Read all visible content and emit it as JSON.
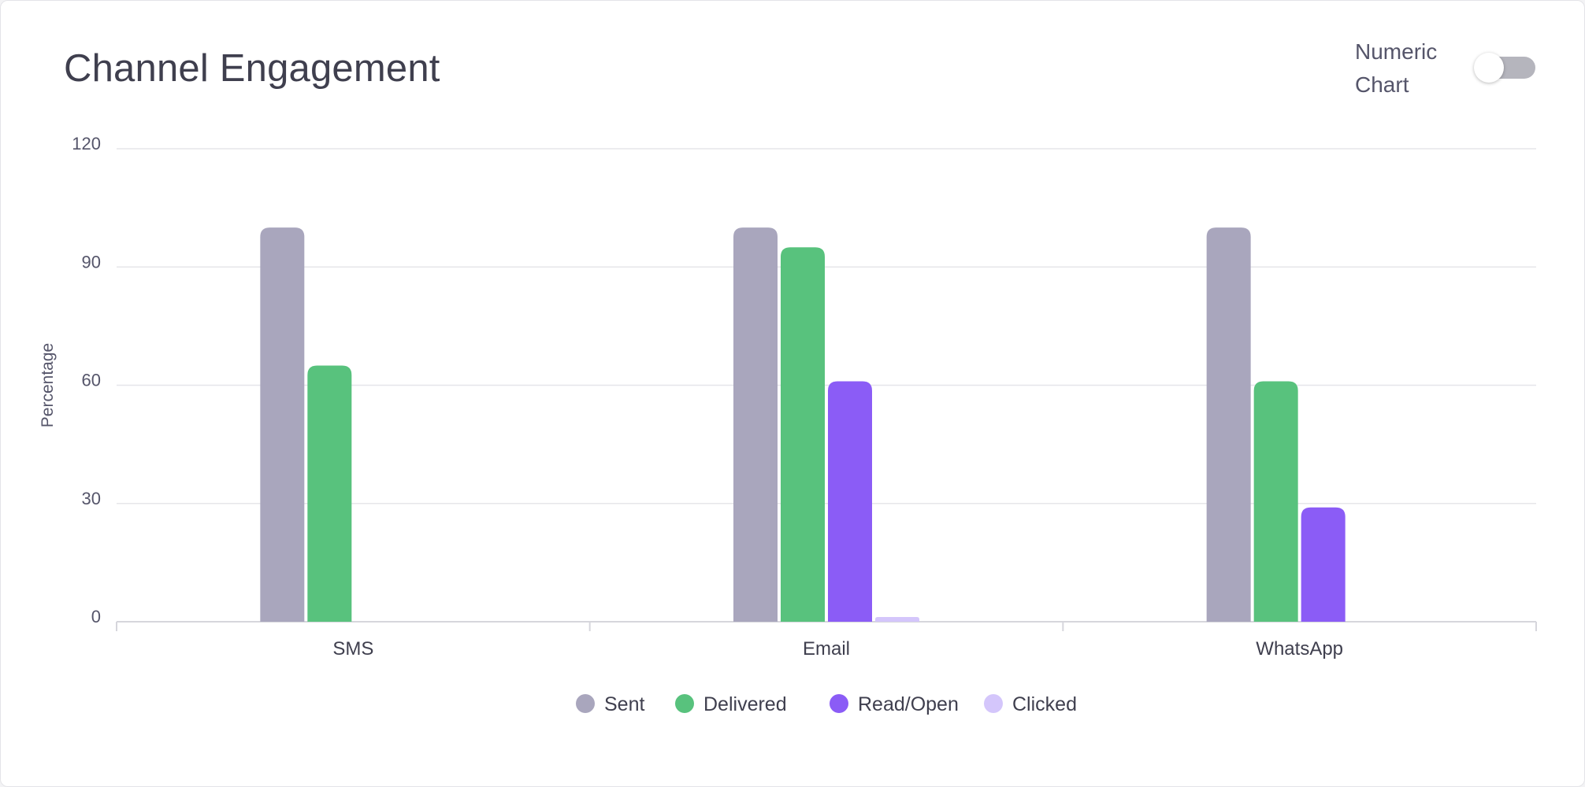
{
  "header": {
    "title": "Channel Engagement",
    "toggle_label_line1": "Numeric",
    "toggle_label_line2": "Chart",
    "toggle_on": false
  },
  "chart_data": {
    "type": "bar",
    "title": "Channel Engagement",
    "xlabel": "",
    "ylabel": "Percentage",
    "ylim": [
      0,
      120
    ],
    "yticks": [
      0,
      30,
      60,
      90,
      120
    ],
    "grid": true,
    "legend_position": "bottom-center",
    "categories": [
      "SMS",
      "Email",
      "WhatsApp"
    ],
    "series": [
      {
        "name": "Sent",
        "color": "#a9a6bd",
        "values": [
          100,
          100,
          100
        ]
      },
      {
        "name": "Delivered",
        "color": "#58c27d",
        "values": [
          65,
          95,
          61
        ]
      },
      {
        "name": "Read/Open",
        "color": "#8b5cf6",
        "values": [
          0,
          61,
          29
        ]
      },
      {
        "name": "Clicked",
        "color": "#d4c6fb",
        "values": [
          0,
          1.2,
          0
        ]
      }
    ]
  }
}
